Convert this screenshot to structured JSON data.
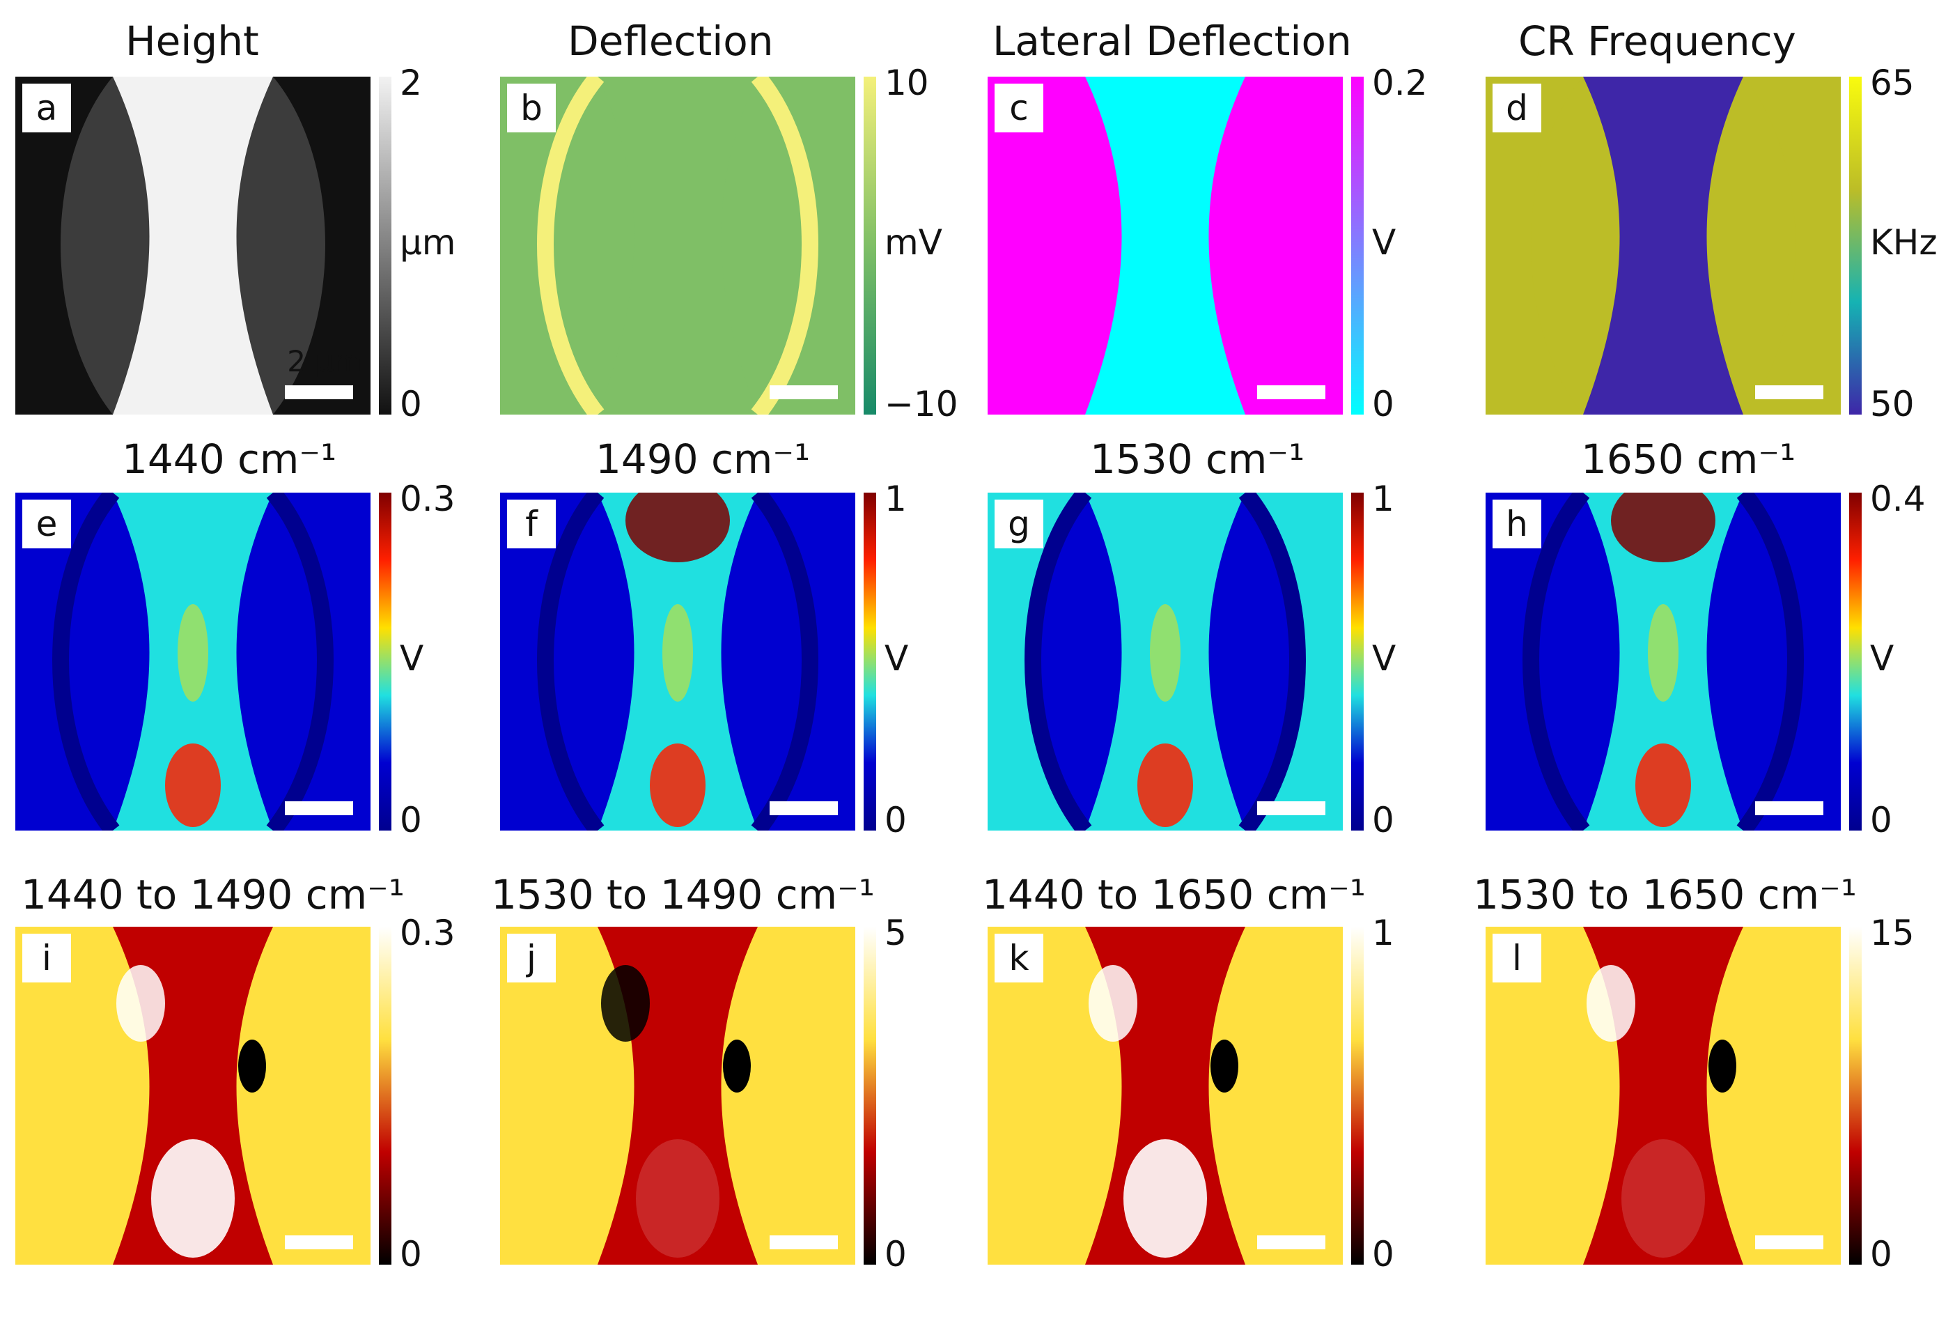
{
  "figure": {
    "panels": [
      {
        "id": "a",
        "title": "Height",
        "unit": "μm",
        "max": "2",
        "min": "0",
        "scale_label": "2 μm",
        "colormap": "gray"
      },
      {
        "id": "b",
        "title": "Deflection",
        "unit": "mV",
        "max": "10",
        "min": "−10",
        "colormap": "summer"
      },
      {
        "id": "c",
        "title": "Lateral Deflection",
        "unit": "V",
        "max": "0.2",
        "min": "0",
        "colormap": "cool"
      },
      {
        "id": "d",
        "title": "CR Frequency",
        "unit": "KHz",
        "max": "65",
        "min": "50",
        "colormap": "parula"
      },
      {
        "id": "e",
        "title": "1440 cm⁻¹",
        "unit": "V",
        "max": "0.3",
        "min": "0",
        "colormap": "jet"
      },
      {
        "id": "f",
        "title": "1490 cm⁻¹",
        "unit": "V",
        "max": "1",
        "min": "0",
        "colormap": "jet"
      },
      {
        "id": "g",
        "title": "1530 cm⁻¹",
        "unit": "V",
        "max": "1",
        "min": "0",
        "colormap": "jet"
      },
      {
        "id": "h",
        "title": "1650 cm⁻¹",
        "unit": "V",
        "max": "0.4",
        "min": "0",
        "colormap": "jet"
      },
      {
        "id": "i",
        "title": "1440 to 1490 cm⁻¹",
        "unit": "",
        "max": "0.3",
        "min": "0",
        "colormap": "hot"
      },
      {
        "id": "j",
        "title": "1530 to 1490 cm⁻¹",
        "unit": "",
        "max": "5",
        "min": "0",
        "colormap": "hot"
      },
      {
        "id": "k",
        "title": "1440 to 1650 cm⁻¹",
        "unit": "",
        "max": "1",
        "min": "0",
        "colormap": "hot"
      },
      {
        "id": "l",
        "title": "1530 to 1650 cm⁻¹",
        "unit": "",
        "max": "15",
        "min": "0",
        "colormap": "hot"
      }
    ]
  },
  "colors": {
    "gray_light": "#f2f2f2",
    "gray_dark": "#111111",
    "gray_mid": "#3c3c3c",
    "summer_high": "#f4f07a",
    "summer_mid": "#7fbf66",
    "summer_low": "#178a68",
    "cool_high": "#ff00ff",
    "cool_low": "#00ffff",
    "parula_high": "#f9fb0e",
    "parula_mid": "#bcbd27",
    "parula_low": "#3e26a8",
    "parula_teal": "#15b3b3",
    "jet_high": "#7f0000",
    "jet_red": "#ff2000",
    "jet_yellow": "#ffe000",
    "jet_cyan": "#20e0e0",
    "jet_low": "#00008f",
    "jet_blue": "#0000d0",
    "hot_high": "#ffffff",
    "hot_yellow": "#ffe040",
    "hot_red": "#c00000",
    "hot_low": "#000000"
  }
}
